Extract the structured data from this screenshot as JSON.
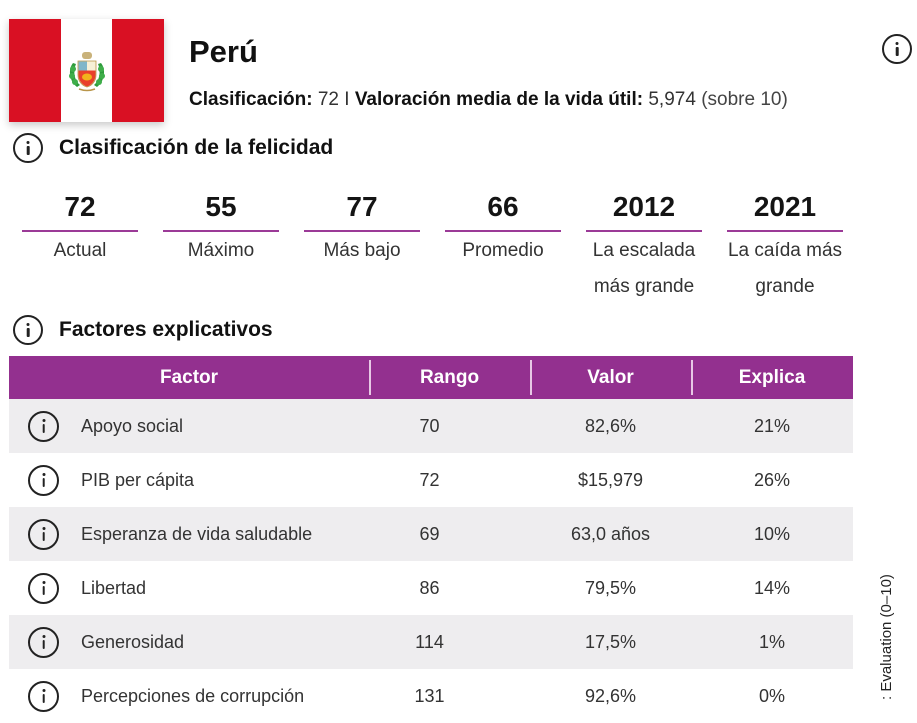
{
  "header": {
    "country": "Perú",
    "rank_label": "Clasificación:",
    "rank_value": "72",
    "separator": "I",
    "life_label": "Valoración media de la vida útil:",
    "life_value": "5,974",
    "life_suffix": "(sobre 10)",
    "flag_colors": {
      "red": "#d91023",
      "white": "#ffffff"
    }
  },
  "happiness": {
    "title": "Clasificación de la felicidad",
    "stats": [
      {
        "value": "72",
        "label": "Actual"
      },
      {
        "value": "55",
        "label": "Máximo"
      },
      {
        "value": "77",
        "label": "Más bajo"
      },
      {
        "value": "66",
        "label": "Promedio"
      },
      {
        "value": "2012",
        "label": "La escalada más grande"
      },
      {
        "value": "2021",
        "label": "La caída más grande"
      }
    ]
  },
  "factors": {
    "title": "Factores explicativos",
    "columns": [
      "Factor",
      "Rango",
      "Valor",
      "Explica"
    ],
    "rows": [
      {
        "factor": "Apoyo social",
        "rank": "70",
        "value": "82,6%",
        "explains": "21%"
      },
      {
        "factor": "PIB per cápita",
        "rank": "72",
        "value": "$15,979",
        "explains": "26%"
      },
      {
        "factor": "Esperanza de vida saludable",
        "rank": "69",
        "value": "63,0 años",
        "explains": "10%"
      },
      {
        "factor": "Libertad",
        "rank": "86",
        "value": "79,5%",
        "explains": "14%"
      },
      {
        "factor": "Generosidad",
        "rank": "114",
        "value": "17,5%",
        "explains": "1%"
      },
      {
        "factor": "Percepciones de corrupción",
        "rank": "131",
        "value": "92,6%",
        "explains": "0%"
      }
    ],
    "header_color": "#93308f",
    "alt_row_color": "#eeedef"
  },
  "side_label": ": Evaluation (0–10)",
  "icons": {
    "info": "info-circle-icon"
  }
}
